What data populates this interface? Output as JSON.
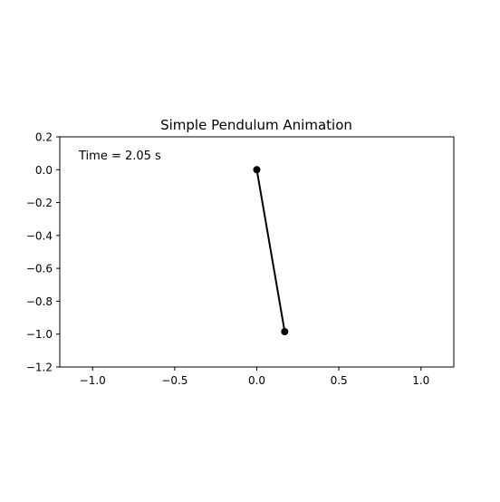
{
  "chart_data": {
    "type": "line",
    "title": "Simple Pendulum Animation",
    "xlabel": "",
    "ylabel": "",
    "xlim": [
      -1.2,
      1.2
    ],
    "ylim": [
      -1.2,
      0.2
    ],
    "xticks": [
      -1.0,
      -0.5,
      0.0,
      0.5,
      1.0
    ],
    "xtick_labels": [
      "−1.0",
      "−0.5",
      "0.0",
      "0.5",
      "1.0"
    ],
    "yticks": [
      0.2,
      0.0,
      -0.2,
      -0.4,
      -0.6,
      -0.8,
      -1.0,
      -1.2
    ],
    "ytick_labels": [
      "0.2",
      "0.0",
      "−0.2",
      "−0.4",
      "−0.6",
      "−0.8",
      "−1.0",
      "−1.2"
    ],
    "grid": false,
    "annotation": "Time = 2.05 s",
    "series": [
      {
        "x": [
          0.0,
          0.17
        ],
        "y": [
          0.0,
          -0.985
        ],
        "color": "#000000",
        "marker": "circle"
      }
    ]
  }
}
